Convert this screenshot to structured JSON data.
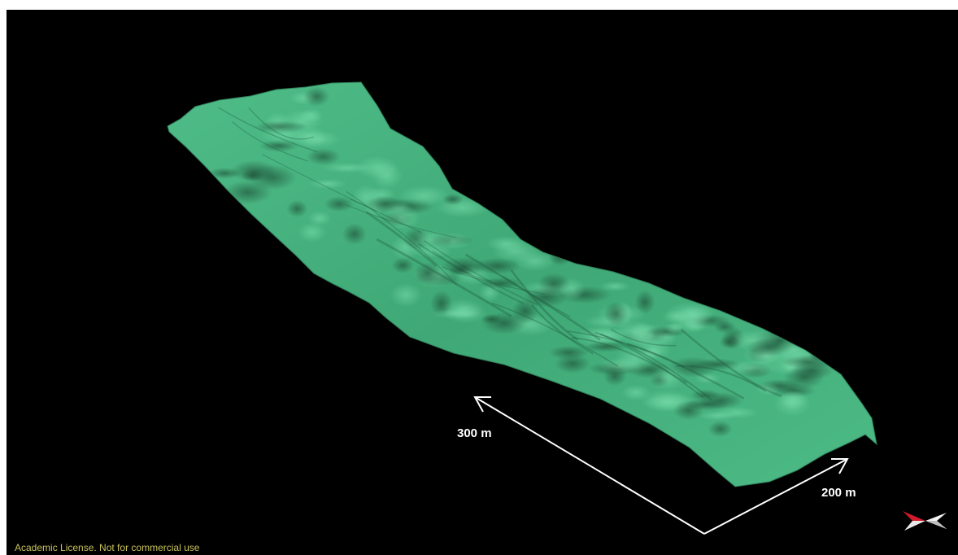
{
  "viewport": {
    "background": "#000000",
    "surface_color": "#3fae78",
    "surface_shadow_color": "#1f5a3e",
    "arrow_color": "#ffffff"
  },
  "scale_bars": {
    "length_label": "300 m",
    "width_label": "200 m"
  },
  "license_text": "Academic License. Not for commercial use",
  "license_color": "#c8c25a",
  "icons": {
    "navigation": "orientation-compass-icon",
    "navigation_accent_color": "#d11a2a"
  }
}
